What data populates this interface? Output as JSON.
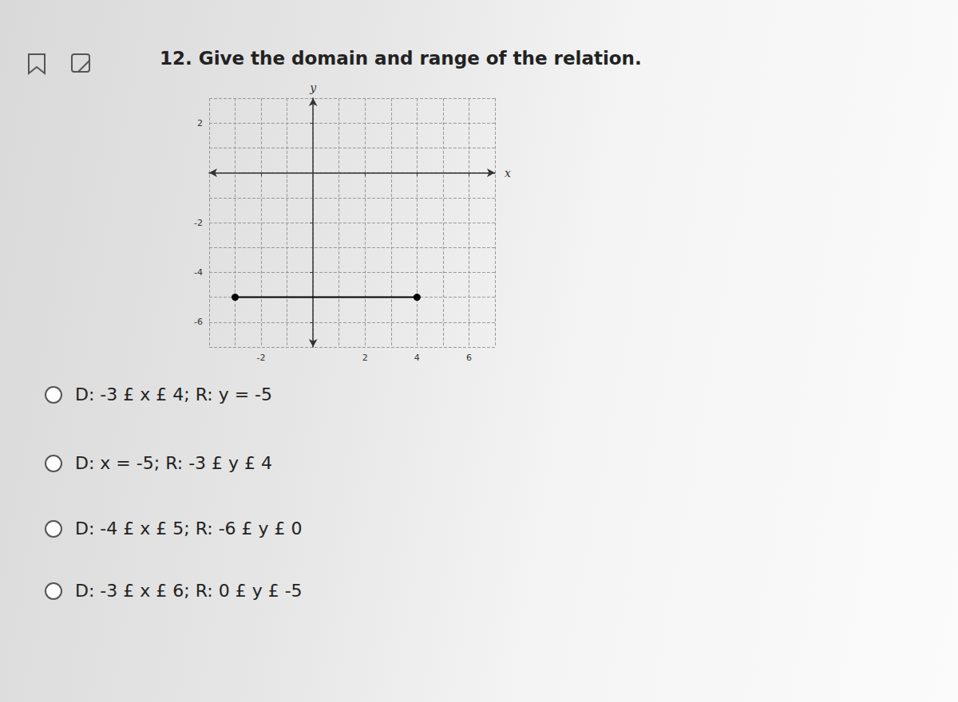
{
  "question": "12. Give the domain and range of the relation.",
  "chart_data": {
    "type": "line",
    "x": [
      -3,
      4
    ],
    "values": [
      -5,
      -5
    ],
    "xlim": [
      -4,
      7
    ],
    "ylim": [
      -7,
      3
    ],
    "xticks": [
      -2,
      2,
      4,
      6
    ],
    "yticks": [
      -6,
      -4,
      -2,
      2
    ],
    "xlabel": "x",
    "ylabel": "y",
    "grid": true,
    "color": "#000000",
    "marker": "circle"
  },
  "options": [
    "D: -3 £ x £ 4; R: y = -5",
    "D: x = -5; R: -3 £ y £ 4",
    "D: -4 £ x £ 5; R: -6 £ y £ 0",
    "D: -3 £ x £ 6; R: 0 £ y £ -5"
  ]
}
